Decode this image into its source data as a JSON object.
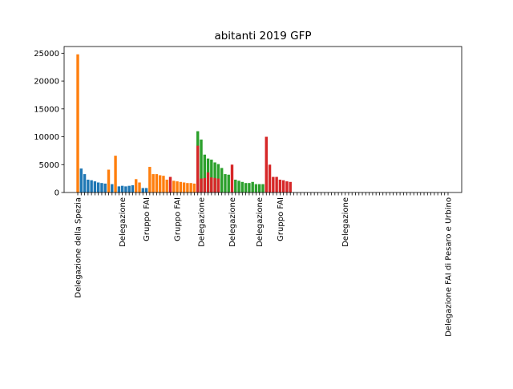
{
  "chart_data": {
    "type": "bar",
    "title": "abitanti  2019  GFP",
    "xlabel": "",
    "ylabel": "",
    "ylim": [
      0,
      26200
    ],
    "yticks": [
      0,
      5000,
      10000,
      15000,
      20000,
      25000
    ],
    "grid": false,
    "legend": "none",
    "colors": {
      "blue": "#1f77b4",
      "orange": "#ff7f0e",
      "green": "#2ca02c",
      "red": "#d62728"
    },
    "categories": [
      "Delegazione della Spezia",
      "",
      "",
      "",
      "",
      "",
      "",
      "",
      "",
      "",
      "",
      "",
      "",
      "Delegazione",
      "",
      "",
      "",
      "",
      "",
      "",
      "Gruppo FAI",
      "",
      "",
      "",
      "",
      "",
      "",
      "",
      "",
      "Gruppo FAI",
      "",
      "",
      "",
      "",
      "",
      "",
      "Delegazione",
      "",
      "",
      "",
      "",
      "",
      "",
      "",
      "",
      "Delegazione",
      "",
      "",
      "",
      "",
      "",
      "",
      "",
      "Delegazione",
      "",
      "",
      "",
      "",
      "",
      "Gruppo FAI",
      "",
      "",
      "",
      "",
      "",
      "",
      "",
      "",
      "",
      "",
      "",
      "",
      "",
      "",
      "",
      "",
      "",
      "",
      "Delegazione",
      "",
      "",
      "",
      "",
      "",
      "",
      "",
      "",
      "",
      "",
      "",
      "",
      "",
      "",
      "",
      "",
      "",
      "",
      "",
      "",
      "",
      "",
      "",
      "",
      "",
      "",
      "",
      "",
      "",
      "Delegazione FAI di Pesaro e Urbino"
    ],
    "values": [
      24800,
      4300,
      3300,
      2300,
      2200,
      2000,
      1800,
      1700,
      1600,
      4100,
      1500,
      6600,
      1100,
      1200,
      1100,
      1200,
      1300,
      2400,
      1800,
      800,
      800,
      4600,
      3300,
      3300,
      3100,
      3000,
      2300,
      2800,
      2100,
      2000,
      1900,
      1800,
      1700,
      1700,
      1600,
      11000,
      9500,
      6800,
      6100,
      5900,
      5400,
      5100,
      4400,
      3300,
      3200,
      5000,
      2300,
      2100,
      1900,
      1700,
      1700,
      1900,
      1500,
      1500,
      1500,
      10000,
      5000,
      2800,
      2800,
      2300,
      2200,
      2000,
      1900,
      0,
      0,
      0,
      0,
      0,
      0,
      0,
      0,
      0,
      0,
      0,
      0,
      0,
      0,
      0,
      0,
      0,
      0,
      0,
      0,
      0,
      0,
      0,
      0,
      0,
      0,
      0,
      0,
      0,
      0,
      0,
      0,
      0,
      0,
      0,
      0,
      0,
      0,
      0,
      0,
      0,
      0,
      0,
      0,
      0,
      0
    ],
    "bar_colors": [
      "orange",
      "blue",
      "blue",
      "blue",
      "blue",
      "blue",
      "blue",
      "blue",
      "blue",
      "orange",
      "blue",
      "orange",
      "blue",
      "blue",
      "blue",
      "blue",
      "blue",
      "orange",
      "orange",
      "blue",
      "blue",
      "orange",
      "orange",
      "orange",
      "orange",
      "orange",
      "orange",
      "red",
      "orange",
      "orange",
      "orange",
      "orange",
      "orange",
      "orange",
      "orange",
      "green",
      "green",
      "green",
      "green",
      "green",
      "green",
      "green",
      "green",
      "green",
      "green",
      "red",
      "green",
      "green",
      "green",
      "green",
      "green",
      "green",
      "green",
      "green",
      "green",
      "red",
      "red",
      "red",
      "red",
      "red",
      "red",
      "red",
      "red",
      "red",
      "red",
      "red",
      "red",
      "red",
      "red",
      "red",
      "red",
      "red",
      "red",
      "red",
      "red",
      "red",
      "red",
      "red",
      "red",
      "red",
      "red",
      "red",
      "red",
      "red",
      "red",
      "red",
      "red",
      "red",
      "red",
      "red",
      "red",
      "red",
      "red",
      "red",
      "red",
      "red",
      "red",
      "red",
      "red",
      "red",
      "red",
      "red",
      "red",
      "red",
      "red",
      "red",
      "red",
      "red",
      "red"
    ],
    "overlays": [
      {
        "index": 35,
        "value": 8400,
        "color": "red"
      },
      {
        "index": 36,
        "value": 2500,
        "color": "red"
      },
      {
        "index": 37,
        "value": 2600,
        "color": "red"
      },
      {
        "index": 38,
        "value": 3600,
        "color": "red"
      },
      {
        "index": 39,
        "value": 2700,
        "color": "red"
      },
      {
        "index": 40,
        "value": 2600,
        "color": "red"
      },
      {
        "index": 41,
        "value": 2500,
        "color": "red"
      }
    ]
  }
}
